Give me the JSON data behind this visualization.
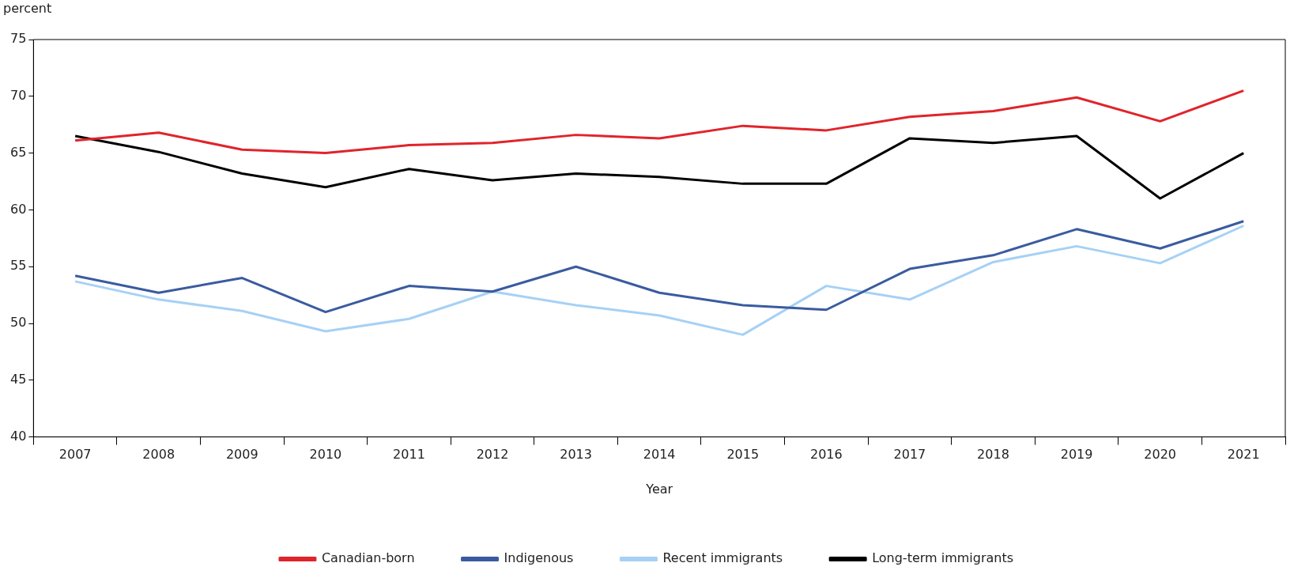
{
  "chart_data": {
    "type": "line",
    "ylabel": "percent",
    "xlabel": "Year",
    "categories": [
      "2007",
      "2008",
      "2009",
      "2010",
      "2011",
      "2012",
      "2013",
      "2014",
      "2015",
      "2016",
      "2017",
      "2018",
      "2019",
      "2020",
      "2021"
    ],
    "series": [
      {
        "name": "Canadian-born",
        "color": "#e0242b",
        "values": [
          66.1,
          66.8,
          65.3,
          65.0,
          65.7,
          65.9,
          66.6,
          66.3,
          67.4,
          67.0,
          68.2,
          68.7,
          69.9,
          67.8,
          70.5
        ]
      },
      {
        "name": "Indigenous",
        "color": "#3a5ba0",
        "values": [
          54.2,
          52.7,
          54.0,
          51.0,
          53.3,
          52.8,
          55.0,
          52.7,
          51.6,
          51.2,
          54.8,
          56.0,
          58.3,
          56.6,
          59.0
        ]
      },
      {
        "name": "Recent immigrants",
        "color": "#a6d1f5",
        "values": [
          53.7,
          52.1,
          51.1,
          49.3,
          50.4,
          52.8,
          51.6,
          50.7,
          49.0,
          53.3,
          52.1,
          55.4,
          56.8,
          55.3,
          58.6
        ]
      },
      {
        "name": "Long-term immigrants",
        "color": "#000000",
        "values": [
          66.5,
          65.1,
          63.2,
          62.0,
          63.6,
          62.6,
          63.2,
          62.9,
          62.3,
          62.3,
          66.3,
          65.9,
          66.5,
          61.0,
          65.0
        ]
      }
    ],
    "ylim": [
      40,
      75
    ],
    "yticks": [
      40,
      45,
      50,
      55,
      60,
      65,
      70,
      75
    ],
    "grid": false,
    "legend": "bottom",
    "marker": "none",
    "line_style": "solid"
  }
}
